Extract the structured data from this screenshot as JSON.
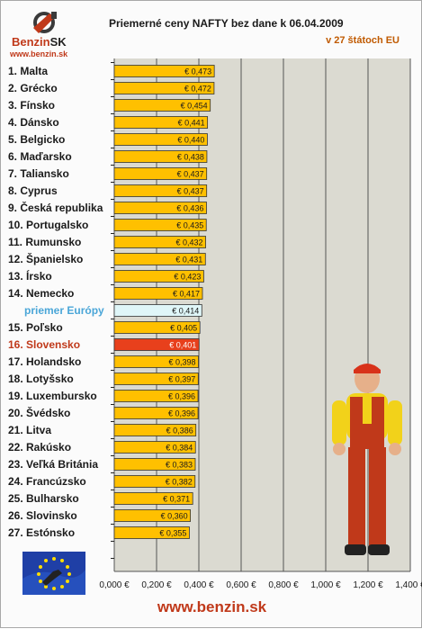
{
  "header": {
    "logo_brand": "Benzin",
    "logo_brand_suffix": "SK",
    "logo_url": "www.benzin.sk",
    "title": "Priemerné ceny NAFTY bez dane k 06.04.2009",
    "subtitle": "v 27 štátoch EU"
  },
  "footer": {
    "url": "www.benzin.sk"
  },
  "colors": {
    "bar": "#ffc000",
    "bar_average": "#dff6f8",
    "bar_highlight": "#e8401c",
    "plot_background": "#dbdad1",
    "gridline": "#555555"
  },
  "chart_data": {
    "type": "bar",
    "orientation": "horizontal",
    "title": "Priemerné ceny NAFTY bez dane k 06.04.2009",
    "subtitle": "v 27 štátoch EU",
    "xlim": [
      0,
      1.4
    ],
    "xticks": [
      0,
      0.2,
      0.4,
      0.6,
      0.8,
      1.0,
      1.2,
      1.4
    ],
    "xtick_labels": [
      "0,000 €",
      "0,200 €",
      "0,400 €",
      "0,600 €",
      "0,800 €",
      "1,000 €",
      "1,200 €",
      "1,400 €"
    ],
    "grid": "vertical",
    "categories": [
      "1. Malta",
      "2. Grécko",
      "3. Fínsko",
      "4. Dánsko",
      "5. Belgicko",
      "6. Maďarsko",
      "7. Taliansko",
      "8. Cyprus",
      "9. Česká republika",
      "10. Portugalsko",
      "11. Rumunsko",
      "12. Španielsko",
      "13. Írsko",
      "14. Nemecko",
      "priemer Európy",
      "15. Poľsko",
      "16. Slovensko",
      "17. Holandsko",
      "18. Lotyšsko",
      "19. Luxembursko",
      "20. Švédsko",
      "21. Litva",
      "22. Rakúsko",
      "23. Veľká Británia",
      "24. Francúzsko",
      "25. Bulharsko",
      "26. Slovinsko",
      "27. Estónsko"
    ],
    "values": [
      0.473,
      0.472,
      0.454,
      0.441,
      0.44,
      0.438,
      0.437,
      0.437,
      0.436,
      0.435,
      0.432,
      0.431,
      0.423,
      0.417,
      0.414,
      0.405,
      0.401,
      0.398,
      0.397,
      0.396,
      0.396,
      0.386,
      0.384,
      0.383,
      0.382,
      0.371,
      0.36,
      0.355
    ],
    "value_labels": [
      "€ 0,473",
      "€ 0,472",
      "€ 0,454",
      "€ 0,441",
      "€ 0,440",
      "€ 0,438",
      "€ 0,437",
      "€ 0,437",
      "€ 0,436",
      "€ 0,435",
      "€ 0,432",
      "€ 0,431",
      "€ 0,423",
      "€ 0,417",
      "€ 0,414",
      "€ 0,405",
      "€ 0,401",
      "€ 0,398",
      "€ 0,397",
      "€ 0,396",
      "€ 0,396",
      "€ 0,386",
      "€ 0,384",
      "€ 0,383",
      "€ 0,382",
      "€ 0,371",
      "€ 0,360",
      "€ 0,355"
    ],
    "average_category": "priemer Európy",
    "highlight_category": "16. Slovensko"
  }
}
